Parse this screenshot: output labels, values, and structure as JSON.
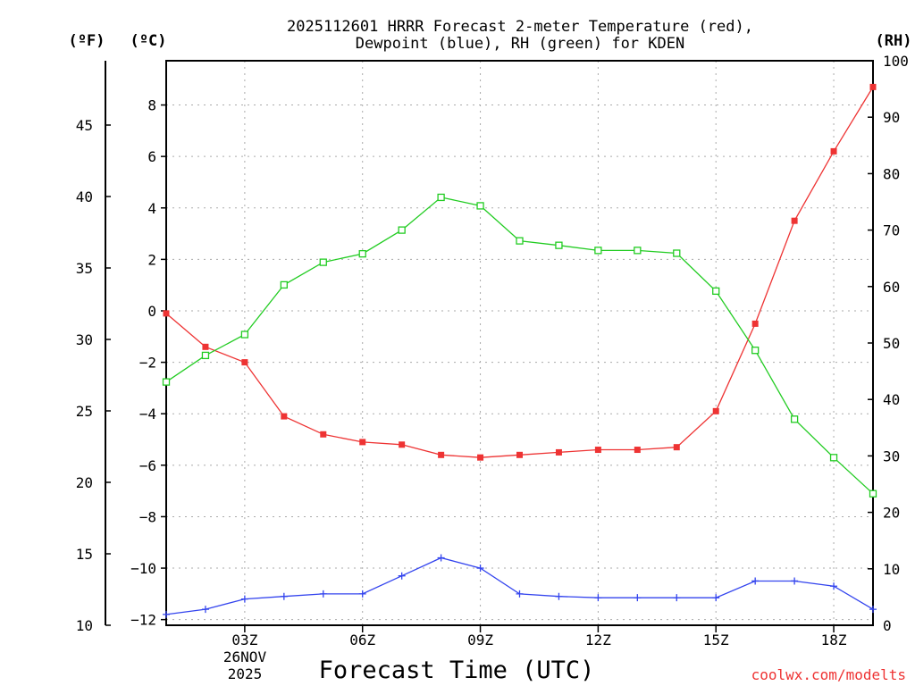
{
  "chart_data": {
    "type": "line",
    "title_lines": [
      "2025112601 HRRR Forecast 2-meter Temperature (red),",
      "Dewpoint (blue), RH (green) for KDEN"
    ],
    "xlabel": "Forecast Time (UTC)",
    "credit": "coolwx.com/modelts",
    "date_label": [
      "26NOV",
      "2025"
    ],
    "x": [
      1,
      2,
      3,
      4,
      5,
      6,
      7,
      8,
      9,
      10,
      11,
      12,
      13,
      14,
      15,
      16,
      17,
      18,
      19
    ],
    "xlim": [
      1,
      19
    ],
    "x_ticks": [
      {
        "x": 3,
        "label": "03Z"
      },
      {
        "x": 6,
        "label": "06Z"
      },
      {
        "x": 9,
        "label": "09Z"
      },
      {
        "x": 12,
        "label": "12Z"
      },
      {
        "x": 15,
        "label": "15Z"
      },
      {
        "x": 18,
        "label": "18Z"
      }
    ],
    "axes": {
      "fahrenheit": {
        "unit": "(ºF)",
        "ylim": [
          10,
          49.5
        ],
        "ticks": [
          "10",
          "15",
          "20",
          "25",
          "30",
          "35",
          "40",
          "45"
        ]
      },
      "celsius": {
        "unit": "(ºC)",
        "ylim": [
          -12.22,
          9.72
        ],
        "ticks": [
          "8",
          "6",
          "4",
          "2",
          "0",
          "−2",
          "−4",
          "−6",
          "−8",
          "−10",
          "−12"
        ]
      },
      "rh": {
        "unit": "(RH)",
        "ylim": [
          0,
          100
        ],
        "ticks": [
          "0",
          "10",
          "20",
          "30",
          "40",
          "50",
          "60",
          "70",
          "80",
          "90",
          "100"
        ]
      }
    },
    "series": [
      {
        "name": "Temperature",
        "axis": "celsius",
        "color": "#ee3333",
        "marker": "filled-square",
        "values": [
          -0.1,
          -1.4,
          -2.0,
          -4.1,
          -4.8,
          -5.1,
          -5.2,
          -5.6,
          -5.7,
          -5.6,
          -5.5,
          -5.4,
          -5.4,
          -5.3,
          -3.9,
          -0.5,
          3.5,
          6.2,
          8.7
        ]
      },
      {
        "name": "Dewpoint",
        "axis": "celsius",
        "color": "#3344ee",
        "marker": "plus",
        "values": [
          -11.8,
          -11.6,
          -11.2,
          -11.1,
          -11.0,
          -11.0,
          -10.3,
          -9.6,
          -10.0,
          -11.0,
          -11.1,
          -11.15,
          -11.15,
          -11.15,
          -11.15,
          -10.5,
          -10.5,
          -10.7,
          -11.6
        ]
      },
      {
        "name": "RH",
        "axis": "rh",
        "color": "#22cc22",
        "marker": "open-square",
        "values": [
          43.1,
          47.8,
          51.5,
          60.3,
          64.3,
          65.8,
          70.0,
          75.8,
          74.3,
          68.1,
          67.3,
          66.4,
          66.4,
          65.9,
          59.2,
          48.7,
          36.5,
          29.7,
          23.3
        ]
      }
    ]
  }
}
